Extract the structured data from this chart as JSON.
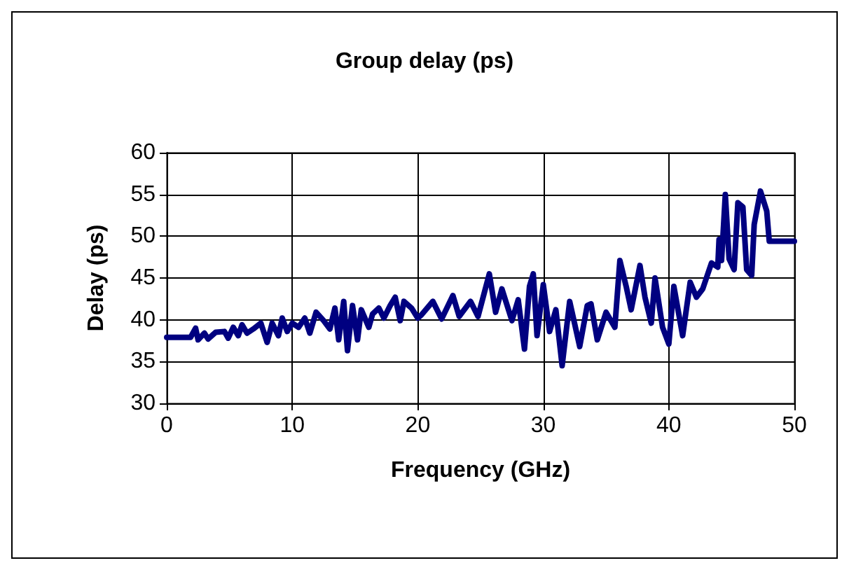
{
  "chart_data": {
    "type": "line",
    "title": "Group delay (ps)",
    "xlabel": "Frequency (GHz)",
    "ylabel": "Delay (ps)",
    "xlim": [
      0,
      50
    ],
    "xticks": [
      0,
      10,
      20,
      30,
      40,
      50
    ],
    "ylim": [
      30,
      60
    ],
    "yticks": [
      30,
      35,
      40,
      45,
      50,
      55,
      60
    ],
    "grid": true,
    "marker": "none",
    "line_style": "solid",
    "series": [
      {
        "color": "#000080",
        "x": [
          0,
          1.9,
          2.3,
          2.5,
          3.0,
          3.3,
          3.9,
          4.6,
          4.9,
          5.3,
          5.7,
          6.0,
          6.4,
          6.9,
          7.5,
          8.0,
          8.4,
          8.9,
          9.2,
          9.6,
          10,
          10.5,
          11.0,
          11.4,
          11.9,
          12.5,
          13.0,
          13.4,
          13.7,
          14.1,
          14.4,
          14.8,
          15.2,
          15.5,
          16.1,
          16.4,
          16.9,
          17.3,
          17.8,
          18.2,
          18.6,
          18.9,
          19.5,
          20,
          20.3,
          21.2,
          21.9,
          22.8,
          23.3,
          24.2,
          24.8,
          25.7,
          26.2,
          26.7,
          27.5,
          28.0,
          28.5,
          28.9,
          29.2,
          29.5,
          30.0,
          30.5,
          31.0,
          31.5,
          32.1,
          32.9,
          33.5,
          33.8,
          34.3,
          35.0,
          35.7,
          36.1,
          36.6,
          37.0,
          37.7,
          38.1,
          38.6,
          38.9,
          39.5,
          40.0,
          40.4,
          41.1,
          41.7,
          42.2,
          42.7,
          43.4,
          43.9,
          44.0,
          44.2,
          44.5,
          44.8,
          45.2,
          45.5,
          45.9,
          46.2,
          46.6,
          46.8,
          47.3,
          47.8,
          48.0,
          50
        ],
        "values": [
          37.9,
          37.9,
          39.0,
          37.6,
          38.4,
          37.7,
          38.5,
          38.6,
          37.8,
          39.1,
          38.1,
          39.4,
          38.4,
          38.9,
          39.6,
          37.3,
          39.6,
          38.1,
          40.2,
          38.6,
          39.6,
          39.1,
          40.2,
          38.4,
          40.9,
          39.9,
          38.9,
          41.4,
          37.6,
          42.2,
          36.3,
          41.7,
          37.6,
          41.2,
          39.1,
          40.7,
          41.4,
          40.2,
          41.7,
          42.7,
          39.9,
          42.2,
          41.4,
          40.2,
          40.6,
          42.2,
          40.1,
          42.9,
          40.4,
          42.2,
          40.4,
          45.5,
          40.9,
          43.7,
          39.9,
          42.4,
          36.5,
          44.0,
          45.5,
          38.1,
          44.2,
          38.6,
          41.2,
          34.5,
          42.2,
          36.8,
          41.7,
          41.9,
          37.6,
          40.9,
          39.1,
          47.1,
          44.0,
          41.2,
          46.5,
          42.7,
          39.6,
          45.0,
          39.1,
          37.1,
          44.0,
          38.1,
          44.5,
          42.7,
          43.7,
          46.8,
          46.3,
          49.6,
          47.1,
          55.0,
          47.3,
          46.0,
          54.0,
          53.5,
          46.0,
          45.3,
          51.4,
          55.4,
          53.0,
          49.4,
          49.4
        ]
      }
    ]
  }
}
